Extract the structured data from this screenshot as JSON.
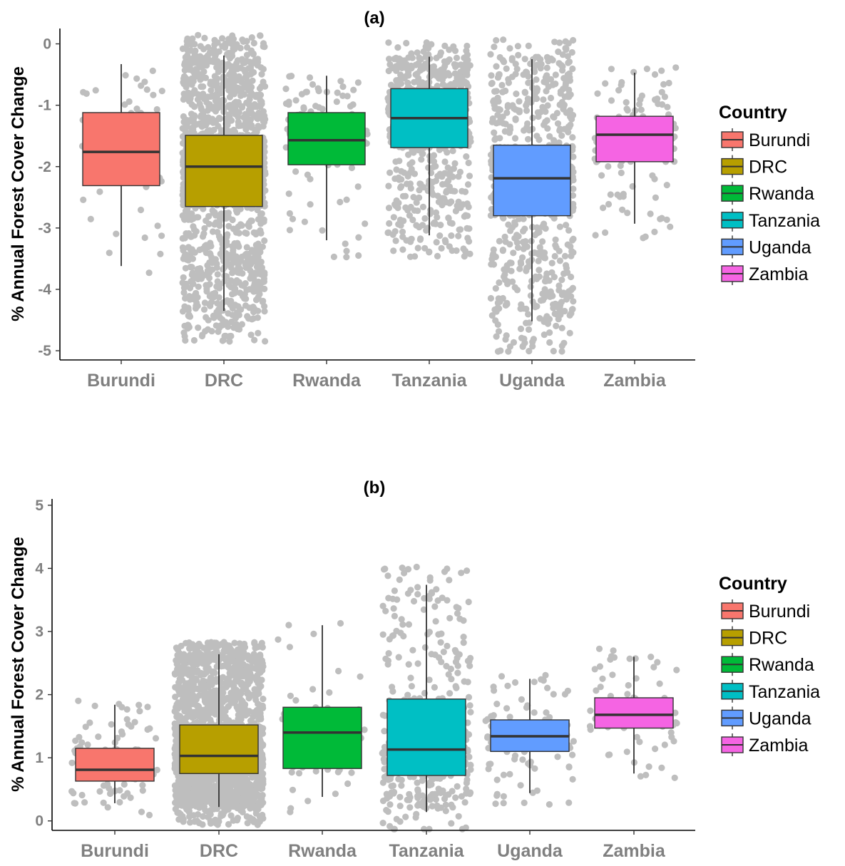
{
  "chart_data": [
    {
      "type": "box",
      "title": "(a)",
      "ylabel": "% Annual Forest Cover Change",
      "xlabel": "",
      "ylim": [
        -5.15,
        0.25
      ],
      "yticks": [
        0,
        -1,
        -2,
        -3,
        -4,
        -5
      ],
      "grid": false,
      "legend_title": "Country",
      "legend_position": "right",
      "categories": [
        "Burundi",
        "DRC",
        "Rwanda",
        "Tanzania",
        "Uganda",
        "Zambia"
      ],
      "colors": [
        "#F8766D",
        "#B79F00",
        "#00BA38",
        "#00BFC4",
        "#619CFF",
        "#F564E3"
      ],
      "point_color": "#BEBEBE",
      "boxes": [
        {
          "category": "Burundi",
          "whisker_low": -3.62,
          "q1": -2.31,
          "median": -1.76,
          "q3": -1.12,
          "whisker_high": -0.33,
          "n_points": 70
        },
        {
          "category": "DRC",
          "whisker_low": -4.35,
          "q1": -2.65,
          "median": -2.0,
          "q3": -1.49,
          "whisker_high": -0.19,
          "n_points": 1800
        },
        {
          "category": "Rwanda",
          "whisker_low": -3.2,
          "q1": -1.97,
          "median": -1.57,
          "q3": -1.12,
          "whisker_high": -0.52,
          "n_points": 110
        },
        {
          "category": "Tanzania",
          "whisker_low": -3.12,
          "q1": -1.69,
          "median": -1.21,
          "q3": -0.73,
          "whisker_high": -0.21,
          "n_points": 750
        },
        {
          "category": "Uganda",
          "whisker_low": -4.52,
          "q1": -2.8,
          "median": -2.19,
          "q3": -1.65,
          "whisker_high": -0.25,
          "n_points": 900
        },
        {
          "category": "Zambia",
          "whisker_low": -2.93,
          "q1": -1.92,
          "median": -1.48,
          "q3": -1.18,
          "whisker_high": -0.47,
          "n_points": 130
        }
      ]
    },
    {
      "type": "box",
      "title": "(b)",
      "ylabel": "% Annual Forest Cover Change",
      "xlabel": "",
      "ylim": [
        -0.15,
        5.1
      ],
      "yticks": [
        0,
        1,
        2,
        3,
        4,
        5
      ],
      "grid": false,
      "legend_title": "Country",
      "legend_position": "right",
      "categories": [
        "Burundi",
        "DRC",
        "Rwanda",
        "Tanzania",
        "Uganda",
        "Zambia"
      ],
      "colors": [
        "#F8766D",
        "#B79F00",
        "#00BA38",
        "#00BFC4",
        "#619CFF",
        "#F564E3"
      ],
      "point_color": "#BEBEBE",
      "boxes": [
        {
          "category": "Burundi",
          "whisker_low": 0.28,
          "q1": 0.63,
          "median": 0.81,
          "q3": 1.15,
          "whisker_high": 1.84,
          "n_points": 110
        },
        {
          "category": "DRC",
          "whisker_low": 0.22,
          "q1": 0.75,
          "median": 1.03,
          "q3": 1.52,
          "whisker_high": 2.64,
          "n_points": 2300
        },
        {
          "category": "Rwanda",
          "whisker_low": 0.38,
          "q1": 0.83,
          "median": 1.4,
          "q3": 1.8,
          "whisker_high": 3.1,
          "n_points": 45
        },
        {
          "category": "Tanzania",
          "whisker_low": 0.14,
          "q1": 0.72,
          "median": 1.13,
          "q3": 1.93,
          "whisker_high": 3.74,
          "n_points": 420
        },
        {
          "category": "Uganda",
          "whisker_low": 0.44,
          "q1": 1.1,
          "median": 1.34,
          "q3": 1.6,
          "whisker_high": 2.25,
          "n_points": 110
        },
        {
          "category": "Zambia",
          "whisker_low": 0.75,
          "q1": 1.47,
          "median": 1.68,
          "q3": 1.95,
          "whisker_high": 2.6,
          "n_points": 85
        }
      ]
    }
  ]
}
